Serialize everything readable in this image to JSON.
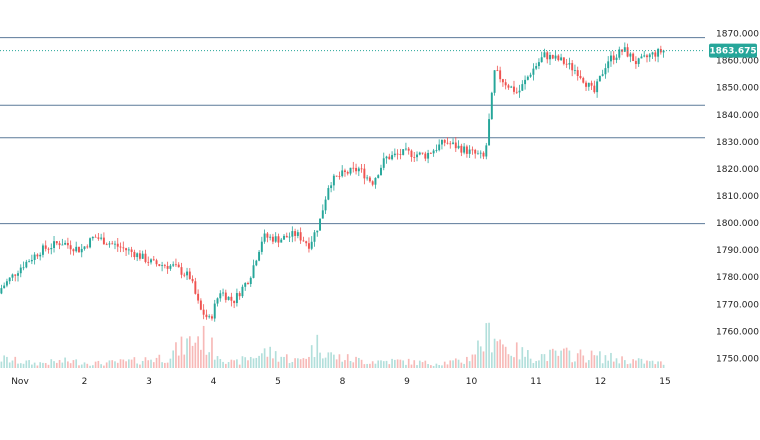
{
  "chart_data": {
    "type": "candlestick",
    "x_labels": [
      "Nov",
      "2",
      "3",
      "4",
      "5",
      "8",
      "9",
      "10",
      "11",
      "12",
      "15"
    ],
    "ylim": [
      1745,
      1875
    ],
    "y_ticks": [
      1750,
      1760,
      1770,
      1780,
      1790,
      1800,
      1810,
      1820,
      1830,
      1840,
      1850,
      1860,
      1870
    ],
    "y_tick_labels": [
      "1750.000",
      "1760.000",
      "1770.000",
      "1780.000",
      "1790.000",
      "1800.000",
      "1810.000",
      "1820.000",
      "1830.000",
      "1840.000",
      "1850.000",
      "1860.000",
      "1870.000"
    ],
    "horizontal_levels": [
      1868.5,
      1843.5,
      1831.5,
      1799.8
    ],
    "current_price": 1863.675,
    "current_price_label": "1863.675",
    "colors": {
      "up": "#26a69a",
      "down": "#ef5350",
      "level_line": "#5b7a99",
      "badge": "#26a69a",
      "axis_text": "#222222",
      "volume_up": "#b2dfdb",
      "volume_down": "#f7b9b7"
    },
    "grid": false,
    "close_path": [
      [
        0,
        1776
      ],
      [
        0.3,
        1784
      ],
      [
        0.6,
        1790
      ],
      [
        0.9,
        1793
      ],
      [
        1.2,
        1790
      ],
      [
        1.4,
        1795
      ],
      [
        1.7,
        1792
      ],
      [
        2.0,
        1789
      ],
      [
        2.3,
        1785
      ],
      [
        2.6,
        1784
      ],
      [
        2.85,
        1780
      ],
      [
        3.0,
        1768
      ],
      [
        3.15,
        1764
      ],
      [
        3.3,
        1775
      ],
      [
        3.5,
        1771
      ],
      [
        3.75,
        1780
      ],
      [
        3.95,
        1795
      ],
      [
        4.2,
        1794
      ],
      [
        4.45,
        1796
      ],
      [
        4.65,
        1792
      ],
      [
        4.8,
        1800
      ],
      [
        4.95,
        1815
      ],
      [
        5.15,
        1818
      ],
      [
        5.4,
        1820
      ],
      [
        5.6,
        1815
      ],
      [
        5.8,
        1824
      ],
      [
        6.1,
        1826
      ],
      [
        6.4,
        1825
      ],
      [
        6.7,
        1830
      ],
      [
        6.9,
        1828
      ],
      [
        7.1,
        1826
      ],
      [
        7.3,
        1824
      ],
      [
        7.45,
        1856
      ],
      [
        7.6,
        1852
      ],
      [
        7.8,
        1848
      ],
      [
        8.0,
        1856
      ],
      [
        8.2,
        1862
      ],
      [
        8.45,
        1860
      ],
      [
        8.7,
        1856
      ],
      [
        8.95,
        1848
      ],
      [
        9.15,
        1860
      ],
      [
        9.4,
        1864
      ],
      [
        9.6,
        1859
      ],
      [
        9.8,
        1862
      ],
      [
        10.0,
        1863.7
      ]
    ],
    "volume_path": [
      [
        0,
        4
      ],
      [
        0.5,
        2
      ],
      [
        1.0,
        3
      ],
      [
        1.5,
        2
      ],
      [
        2.0,
        3
      ],
      [
        2.5,
        5
      ],
      [
        3.0,
        14
      ],
      [
        3.2,
        8
      ],
      [
        3.5,
        2
      ],
      [
        4.0,
        7
      ],
      [
        4.5,
        3
      ],
      [
        4.8,
        11
      ],
      [
        5.0,
        5
      ],
      [
        5.5,
        3
      ],
      [
        6.0,
        3
      ],
      [
        6.5,
        2
      ],
      [
        7.0,
        3
      ],
      [
        7.45,
        17
      ],
      [
        7.6,
        9
      ],
      [
        8.0,
        5
      ],
      [
        8.5,
        6
      ],
      [
        9.0,
        5
      ],
      [
        9.3,
        4
      ],
      [
        9.6,
        3
      ],
      [
        10.0,
        2
      ]
    ]
  }
}
